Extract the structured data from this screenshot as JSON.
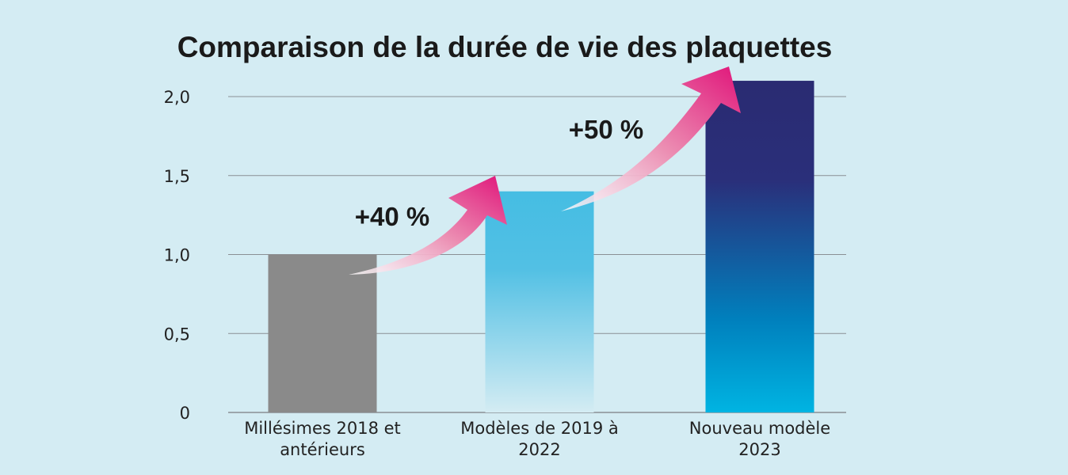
{
  "chart_data": {
    "type": "bar",
    "title": "Comparaison de la durée de vie des plaquettes",
    "xlabel": "",
    "ylabel": "",
    "ylim": [
      0,
      2.0
    ],
    "yticks": [
      0,
      0.5,
      1.0,
      1.5,
      2.0
    ],
    "ytick_labels": [
      "0",
      "0,5",
      "1,0",
      "1,5",
      "2,0"
    ],
    "grid": true,
    "categories": [
      [
        "Millésimes 2018 et",
        "antérieurs"
      ],
      [
        "Modèles de 2019 à",
        "2022"
      ],
      [
        "Nouveau modèle",
        "2023"
      ]
    ],
    "values": [
      1.0,
      1.4,
      2.1
    ],
    "annotations": [
      "+40 %",
      "+50 %"
    ],
    "colors": {
      "bar1": "#8a8a8a",
      "bar2_top": "#45bde3",
      "bar2_bottom": "#d4ecf3",
      "bar3_top": "#2a2b72",
      "bar3_mid": "#0080bd",
      "bar3_bottom": "#00b4e2",
      "arrow": "#e0157a",
      "grid": "#8a8f94"
    }
  }
}
